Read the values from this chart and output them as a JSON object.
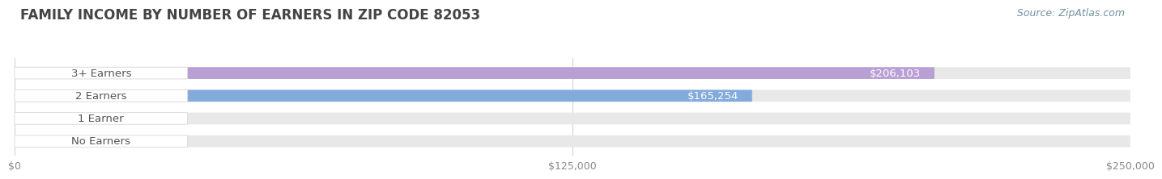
{
  "title": "FAMILY INCOME BY NUMBER OF EARNERS IN ZIP CODE 82053",
  "source": "Source: ZipAtlas.com",
  "categories": [
    "No Earners",
    "1 Earner",
    "2 Earners",
    "3+ Earners"
  ],
  "values": [
    0,
    0,
    165254,
    206103
  ],
  "bar_colors": [
    "#f5c491",
    "#f0a0a0",
    "#82aadb",
    "#b89fd4"
  ],
  "bar_bg_color": "#e8e8e8",
  "xlim": [
    0,
    250000
  ],
  "xticks": [
    0,
    125000,
    250000
  ],
  "xtick_labels": [
    "$0",
    "$125,000",
    "$250,000"
  ],
  "bg_color": "#ffffff",
  "title_fontsize": 12,
  "title_color": "#444444",
  "source_fontsize": 9,
  "source_color": "#7090a0",
  "bar_label_fontsize": 9.5,
  "ytick_fontsize": 9.5,
  "xtick_fontsize": 9
}
